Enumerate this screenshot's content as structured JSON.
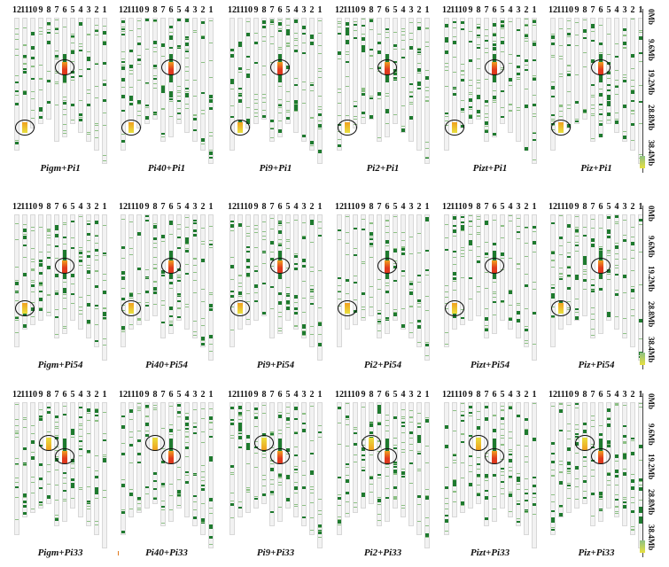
{
  "chromosome_numbers": [
    "12",
    "11",
    "10",
    "9",
    "8",
    "7",
    "6",
    "5",
    "4",
    "3",
    "2",
    "1"
  ],
  "axis_labels": [
    "0Mb",
    "9.6Mb",
    "19.2Mb",
    "28.8Mb",
    "38.4Mb"
  ],
  "rows": [
    {
      "panels": [
        {
          "label": "Pigm+Pi1"
        },
        {
          "label": "Pi40+Pi1"
        },
        {
          "label": "Pi9+Pi1"
        },
        {
          "label": "Pi2+Pi1"
        },
        {
          "label": "Pizt+Pi1"
        },
        {
          "label": "Piz+Pi1"
        }
      ]
    },
    {
      "panels": [
        {
          "label": "Pigm+Pi54"
        },
        {
          "label": "Pi40+Pi54"
        },
        {
          "label": "Pi9+Pi54"
        },
        {
          "label": "Pi2+Pi54"
        },
        {
          "label": "Pizt+Pi54"
        },
        {
          "label": "Piz+Pi54"
        }
      ]
    },
    {
      "panels": [
        {
          "label": "Pigm+Pi33"
        },
        {
          "label": "Pi40+Pi33"
        },
        {
          "label": "Pi9+Pi33"
        },
        {
          "label": "Pi2+Pi33"
        },
        {
          "label": "Pizt+Pi33"
        },
        {
          "label": "Piz+Pi33"
        }
      ]
    }
  ],
  "colors": {
    "band_dark": "#1e7a2e",
    "band_light": "#8cc084",
    "hot_red": "#e03a1e",
    "hot_orange": "#f0a020",
    "hot_yellow": "#e8e040",
    "chromosome_bg": "#f2f2f2"
  }
}
